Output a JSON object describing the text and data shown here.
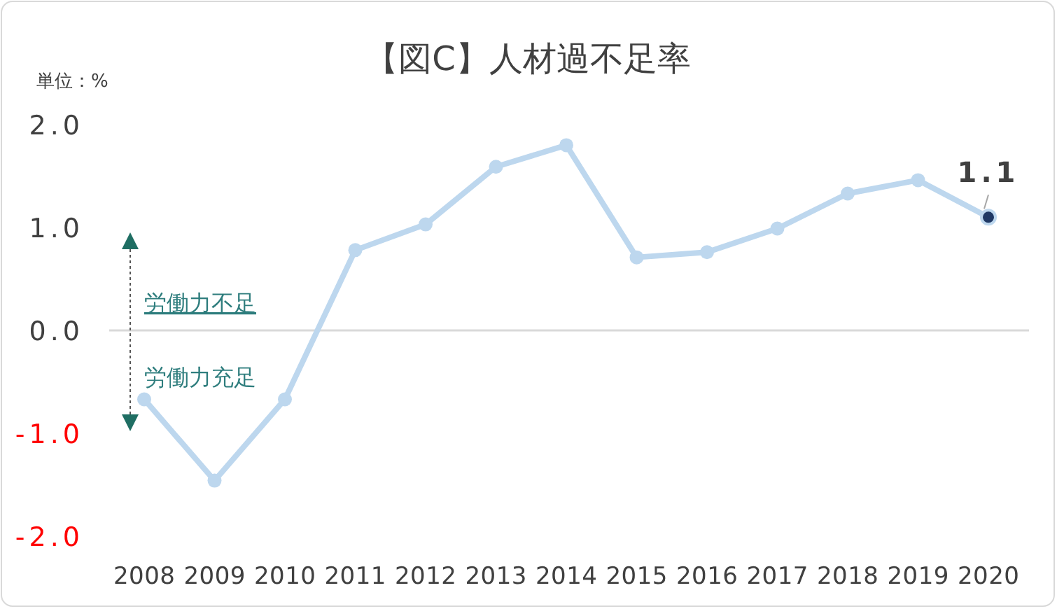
{
  "chart_data": {
    "type": "line",
    "title": "【図C】人材過不足率",
    "categories": [
      "2008",
      "2009",
      "2010",
      "2011",
      "2012",
      "2013",
      "2014",
      "2015",
      "2016",
      "2017",
      "2018",
      "2019",
      "2020"
    ],
    "series": [
      {
        "color": "#bdd7ee",
        "values": [
          -0.67,
          -1.46,
          -0.67,
          0.78,
          1.03,
          1.59,
          1.8,
          0.71,
          0.76,
          0.99,
          1.33,
          1.46,
          1.1
        ],
        "value_labels": [
          null,
          null,
          null,
          null,
          null,
          null,
          null,
          null,
          null,
          null,
          null,
          null,
          "1.1"
        ]
      }
    ],
    "ylim": [
      -2,
      2
    ],
    "yticks": [
      {
        "value": 2,
        "label": "2.0"
      },
      {
        "value": 1,
        "label": "1.0"
      },
      {
        "value": 0,
        "label": "0.0"
      },
      {
        "value": -1,
        "label": "-1.0"
      },
      {
        "value": -2,
        "label": "-2.0"
      }
    ],
    "ref_lines": [
      {
        "axis": "y",
        "value": 0,
        "color": "#d9d9d9"
      }
    ],
    "annotations": [
      "単位：%",
      "労働力不足",
      "労働力充足"
    ],
    "marker": "circle",
    "line_style": "solid"
  }
}
